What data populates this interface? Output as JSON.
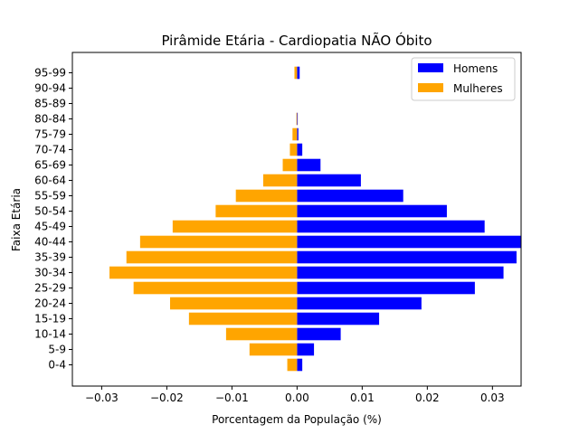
{
  "chart_data": {
    "type": "bar",
    "orientation": "horizontal",
    "layout": "population-pyramid",
    "title": "Pirâmide Etária - Cardiopatia NÃO Óbito",
    "xlabel": "Porcentagem da População (%)",
    "ylabel": "Faixa Etária",
    "categories": [
      "0-4",
      "5-9",
      "10-14",
      "15-19",
      "20-24",
      "25-29",
      "30-34",
      "35-39",
      "40-44",
      "45-49",
      "50-54",
      "55-59",
      "60-64",
      "65-69",
      "70-74",
      "75-79",
      "80-84",
      "85-89",
      "90-94",
      "95-99"
    ],
    "series": [
      {
        "name": "Homens",
        "color": "#0000ff",
        "values": [
          0.0008,
          0.0026,
          0.0067,
          0.0126,
          0.0191,
          0.0273,
          0.0317,
          0.0337,
          0.0344,
          0.0288,
          0.023,
          0.0163,
          0.0098,
          0.0036,
          0.0008,
          0.0002,
          0.0001,
          0.0,
          0.0,
          0.0004
        ]
      },
      {
        "name": "Mulheres",
        "color": "#ffa500",
        "values": [
          -0.0015,
          -0.0073,
          -0.0109,
          -0.0166,
          -0.0195,
          -0.0251,
          -0.0288,
          -0.0262,
          -0.0241,
          -0.0191,
          -0.0125,
          -0.0094,
          -0.0052,
          -0.0022,
          -0.0011,
          -0.0007,
          -0.0001,
          0.0,
          0.0,
          -0.0004
        ]
      }
    ],
    "xlim": [
      -0.0345,
      0.0344
    ],
    "xticks": [
      -0.03,
      -0.02,
      -0.01,
      0.0,
      0.01,
      0.02,
      0.03
    ],
    "xtick_labels": [
      "−0.03",
      "−0.02",
      "−0.01",
      "0.00",
      "0.01",
      "0.02",
      "0.03"
    ],
    "grid": false,
    "legend": {
      "position": "top-right",
      "entries": [
        "Homens",
        "Mulheres"
      ]
    }
  }
}
